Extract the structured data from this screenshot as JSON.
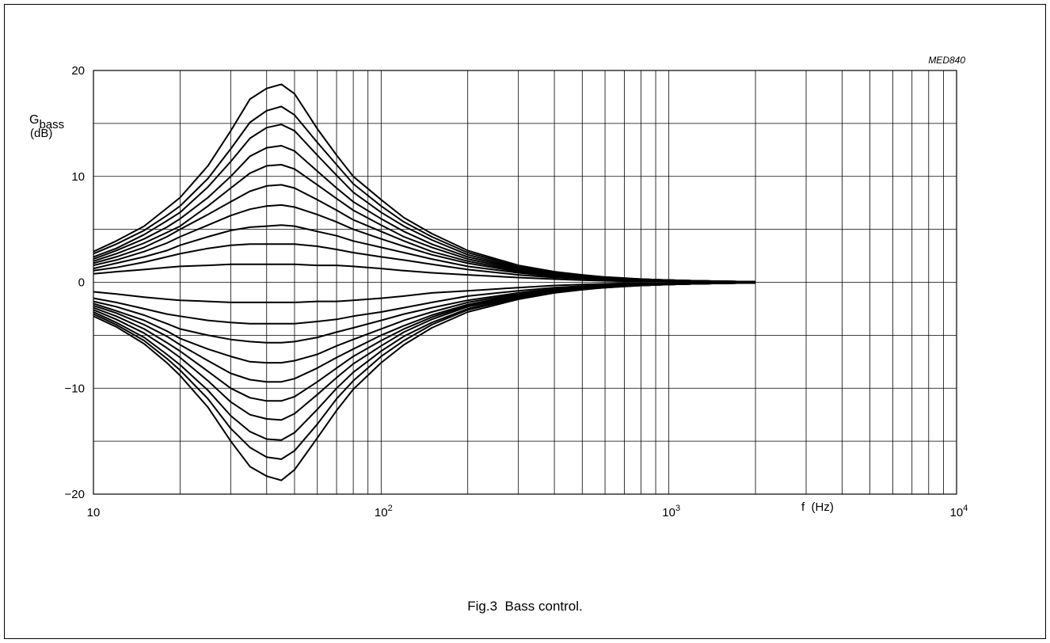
{
  "figure": {
    "code": "MED840",
    "caption": "Fig.3  Bass control."
  },
  "chart_data": {
    "type": "line",
    "xscale": "log",
    "xlim": [
      10,
      10000
    ],
    "ylim": [
      -20,
      20
    ],
    "grid": true,
    "ylabel": {
      "main": "G",
      "sub": "bass",
      "unit": "(dB)"
    },
    "xlabel": "f  (Hz)",
    "yticks": [
      {
        "value": 20,
        "label": "20"
      },
      {
        "value": 10,
        "label": "10"
      },
      {
        "value": 0,
        "label": "0"
      },
      {
        "value": -10,
        "label": "−10"
      },
      {
        "value": -20,
        "label": "−20"
      }
    ],
    "xticks": [
      {
        "value": 10,
        "base": "10",
        "exp": ""
      },
      {
        "value": 100,
        "base": "10",
        "exp": "2"
      },
      {
        "value": 1000,
        "base": "10",
        "exp": "3"
      },
      {
        "value": 10000,
        "base": "10",
        "exp": "4"
      }
    ],
    "x": [
      10,
      12,
      15,
      18,
      20,
      25,
      30,
      35,
      40,
      45,
      50,
      60,
      70,
      80,
      100,
      120,
      150,
      200,
      300,
      400,
      500,
      600,
      700,
      800,
      1000,
      1200,
      1500,
      2000
    ],
    "series": [
      {
        "values": [
          2.9,
          3.9,
          5.3,
          7.0,
          8.0,
          11.0,
          14.3,
          17.3,
          18.3,
          18.7,
          17.8,
          14.5,
          12.0,
          10.0,
          7.8,
          6.1,
          4.6,
          3.0,
          1.6,
          1.0,
          0.7,
          0.5,
          0.4,
          0.3,
          0.2,
          0.15,
          0.1,
          0.05
        ]
      },
      {
        "values": [
          2.7,
          3.6,
          4.9,
          6.3,
          7.2,
          9.8,
          12.6,
          15.1,
          16.2,
          16.6,
          15.8,
          13.2,
          11.1,
          9.3,
          7.2,
          5.7,
          4.3,
          2.8,
          1.5,
          0.9,
          0.6,
          0.45,
          0.35,
          0.3,
          0.2,
          0.15,
          0.1,
          0.05
        ]
      },
      {
        "values": [
          2.4,
          3.2,
          4.5,
          5.8,
          6.6,
          9.0,
          11.4,
          13.6,
          14.6,
          14.9,
          14.3,
          12.0,
          10.1,
          8.5,
          6.6,
          5.3,
          4.0,
          2.6,
          1.4,
          0.9,
          0.6,
          0.45,
          0.35,
          0.3,
          0.2,
          0.15,
          0.1,
          0.05
        ]
      },
      {
        "values": [
          2.2,
          3.0,
          4.1,
          5.2,
          6.0,
          8.0,
          10.0,
          11.9,
          12.7,
          12.9,
          12.4,
          10.5,
          8.9,
          7.6,
          6.0,
          4.8,
          3.6,
          2.4,
          1.3,
          0.8,
          0.55,
          0.4,
          0.3,
          0.25,
          0.2,
          0.15,
          0.1,
          0.05
        ]
      },
      {
        "values": [
          2.0,
          2.7,
          3.7,
          4.7,
          5.3,
          7.2,
          8.9,
          10.3,
          11.0,
          11.1,
          10.7,
          9.2,
          7.9,
          6.8,
          5.4,
          4.3,
          3.3,
          2.2,
          1.2,
          0.75,
          0.5,
          0.4,
          0.3,
          0.25,
          0.2,
          0.15,
          0.1,
          0.05
        ]
      },
      {
        "values": [
          1.8,
          2.4,
          3.3,
          4.3,
          5.0,
          6.4,
          7.6,
          8.6,
          9.1,
          9.2,
          8.9,
          7.8,
          6.8,
          5.9,
          4.8,
          3.9,
          2.9,
          2.0,
          1.1,
          0.7,
          0.5,
          0.35,
          0.3,
          0.25,
          0.2,
          0.15,
          0.1,
          0.05
        ]
      },
      {
        "values": [
          1.6,
          2.1,
          2.9,
          3.7,
          4.3,
          5.4,
          6.3,
          6.9,
          7.2,
          7.3,
          7.1,
          6.4,
          5.7,
          5.0,
          4.1,
          3.4,
          2.6,
          1.8,
          1.0,
          0.65,
          0.45,
          0.35,
          0.25,
          0.2,
          0.15,
          0.1,
          0.1,
          0.05
        ]
      },
      {
        "values": [
          1.3,
          1.8,
          2.4,
          3.0,
          3.5,
          4.3,
          4.9,
          5.2,
          5.3,
          5.4,
          5.3,
          4.8,
          4.4,
          3.9,
          3.3,
          2.8,
          2.2,
          1.5,
          0.9,
          0.55,
          0.4,
          0.3,
          0.25,
          0.2,
          0.15,
          0.1,
          0.1,
          0.05
        ]
      },
      {
        "values": [
          1.1,
          1.4,
          1.9,
          2.4,
          2.7,
          3.2,
          3.5,
          3.6,
          3.6,
          3.6,
          3.6,
          3.4,
          3.1,
          2.8,
          2.4,
          2.1,
          1.7,
          1.2,
          0.7,
          0.45,
          0.35,
          0.25,
          0.2,
          0.15,
          0.1,
          0.1,
          0.05,
          0.05
        ]
      },
      {
        "values": [
          0.8,
          1.0,
          1.2,
          1.4,
          1.5,
          1.6,
          1.7,
          1.7,
          1.7,
          1.7,
          1.7,
          1.6,
          1.6,
          1.5,
          1.3,
          1.1,
          0.9,
          0.7,
          0.45,
          0.3,
          0.2,
          0.15,
          0.1,
          0.1,
          0.1,
          0.05,
          0.05,
          0.05
        ]
      },
      {
        "values": [
          -0.9,
          -1.1,
          -1.4,
          -1.6,
          -1.7,
          -1.8,
          -1.9,
          -1.9,
          -1.9,
          -1.9,
          -1.9,
          -1.8,
          -1.8,
          -1.7,
          -1.5,
          -1.3,
          -1.0,
          -0.8,
          -0.5,
          -0.3,
          -0.2,
          -0.15,
          -0.1,
          -0.1,
          -0.1,
          -0.05,
          -0.05,
          -0.05
        ]
      },
      {
        "values": [
          -1.5,
          -1.9,
          -2.5,
          -3.0,
          -3.2,
          -3.6,
          -3.8,
          -3.9,
          -3.9,
          -3.9,
          -3.9,
          -3.7,
          -3.5,
          -3.2,
          -2.8,
          -2.4,
          -1.9,
          -1.3,
          -0.8,
          -0.5,
          -0.35,
          -0.25,
          -0.2,
          -0.15,
          -0.1,
          -0.1,
          -0.05,
          -0.05
        ]
      },
      {
        "values": [
          -1.8,
          -2.3,
          -3.1,
          -3.9,
          -4.4,
          -5.0,
          -5.4,
          -5.6,
          -5.7,
          -5.7,
          -5.6,
          -5.2,
          -4.7,
          -4.3,
          -3.6,
          -3.0,
          -2.4,
          -1.7,
          -1.0,
          -0.6,
          -0.45,
          -0.35,
          -0.25,
          -0.2,
          -0.15,
          -0.1,
          -0.1,
          -0.05
        ]
      },
      {
        "values": [
          -2.0,
          -2.7,
          -3.6,
          -4.6,
          -5.3,
          -6.3,
          -7.0,
          -7.5,
          -7.6,
          -7.6,
          -7.4,
          -6.8,
          -6.0,
          -5.4,
          -4.4,
          -3.6,
          -2.8,
          -1.9,
          -1.1,
          -0.7,
          -0.5,
          -0.35,
          -0.3,
          -0.25,
          -0.2,
          -0.15,
          -0.1,
          -0.05
        ]
      },
      {
        "values": [
          -2.2,
          -2.9,
          -4.0,
          -5.1,
          -5.9,
          -7.4,
          -8.6,
          -9.2,
          -9.4,
          -9.4,
          -9.1,
          -8.1,
          -7.1,
          -6.3,
          -5.0,
          -4.1,
          -3.1,
          -2.1,
          -1.2,
          -0.75,
          -0.5,
          -0.4,
          -0.3,
          -0.25,
          -0.2,
          -0.15,
          -0.1,
          -0.05
        ]
      },
      {
        "values": [
          -2.4,
          -3.2,
          -4.4,
          -5.7,
          -6.5,
          -8.4,
          -10.0,
          -10.9,
          -11.2,
          -11.2,
          -10.8,
          -9.4,
          -8.1,
          -7.0,
          -5.5,
          -4.4,
          -3.3,
          -2.2,
          -1.3,
          -0.8,
          -0.55,
          -0.4,
          -0.3,
          -0.25,
          -0.2,
          -0.15,
          -0.1,
          -0.05
        ]
      },
      {
        "values": [
          -2.6,
          -3.5,
          -4.8,
          -6.2,
          -7.1,
          -9.3,
          -11.3,
          -12.5,
          -12.9,
          -13.0,
          -12.4,
          -10.6,
          -9.0,
          -7.7,
          -6.0,
          -4.7,
          -3.5,
          -2.3,
          -1.35,
          -0.85,
          -0.6,
          -0.45,
          -0.35,
          -0.3,
          -0.2,
          -0.15,
          -0.1,
          -0.05
        ]
      },
      {
        "values": [
          -2.8,
          -3.8,
          -5.2,
          -6.8,
          -7.8,
          -10.2,
          -12.6,
          -14.1,
          -14.8,
          -14.9,
          -14.2,
          -12.0,
          -10.0,
          -8.5,
          -6.5,
          -5.1,
          -3.8,
          -2.5,
          -1.4,
          -0.9,
          -0.6,
          -0.45,
          -0.35,
          -0.3,
          -0.2,
          -0.15,
          -0.1,
          -0.05
        ]
      },
      {
        "values": [
          -3.0,
          -4.0,
          -5.5,
          -7.2,
          -8.3,
          -11.0,
          -13.8,
          -15.6,
          -16.5,
          -16.7,
          -15.9,
          -13.4,
          -11.0,
          -9.3,
          -7.0,
          -5.5,
          -4.0,
          -2.6,
          -1.5,
          -0.95,
          -0.65,
          -0.5,
          -0.4,
          -0.3,
          -0.2,
          -0.15,
          -0.1,
          -0.05
        ]
      },
      {
        "values": [
          -3.2,
          -4.2,
          -5.8,
          -7.6,
          -8.8,
          -11.8,
          -15.0,
          -17.4,
          -18.3,
          -18.7,
          -17.7,
          -14.7,
          -12.1,
          -10.1,
          -7.6,
          -5.9,
          -4.3,
          -2.8,
          -1.6,
          -1.0,
          -0.7,
          -0.5,
          -0.4,
          -0.3,
          -0.2,
          -0.15,
          -0.1,
          -0.05
        ]
      }
    ]
  }
}
